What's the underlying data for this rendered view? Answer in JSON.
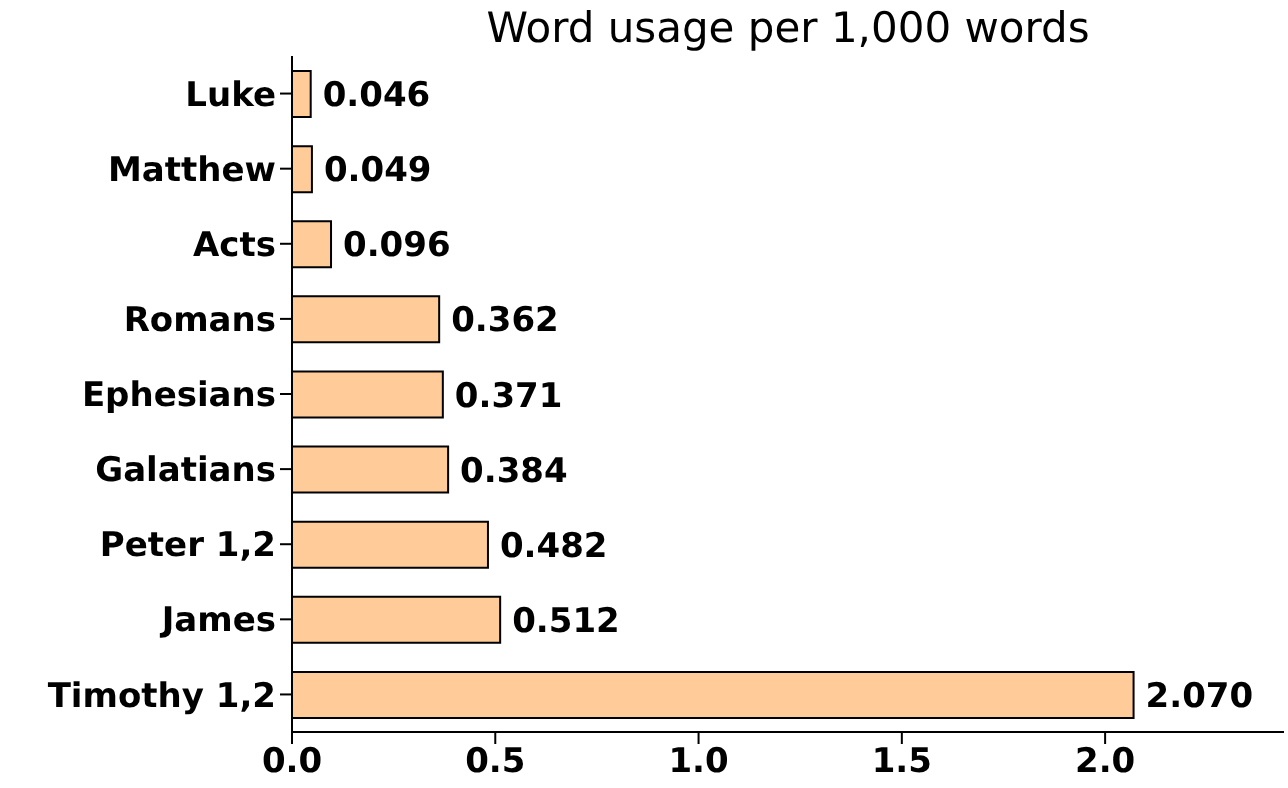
{
  "chart_data": {
    "type": "bar",
    "orientation": "horizontal",
    "title": "Word usage per 1,000 words",
    "categories": [
      "Luke",
      "Matthew",
      "Acts",
      "Romans",
      "Ephesians",
      "Galatians",
      "Peter 1,2",
      "James",
      "Timothy 1,2"
    ],
    "values": [
      0.046,
      0.049,
      0.096,
      0.362,
      0.371,
      0.384,
      0.482,
      0.512,
      2.07
    ],
    "value_labels": [
      "0.046",
      "0.049",
      "0.096",
      "0.362",
      "0.371",
      "0.384",
      "0.482",
      "0.512",
      "2.070"
    ],
    "color": "#ffcc99",
    "xlim": [
      0,
      2.44
    ],
    "xticks": [
      {
        "value": 0,
        "label": "0.0"
      },
      {
        "value": 0.5,
        "label": "0.5"
      },
      {
        "value": 1,
        "label": "1.0"
      },
      {
        "value": 1.5,
        "label": "1.5"
      },
      {
        "value": 2,
        "label": "2.0"
      }
    ],
    "grid": false,
    "legend": false
  }
}
